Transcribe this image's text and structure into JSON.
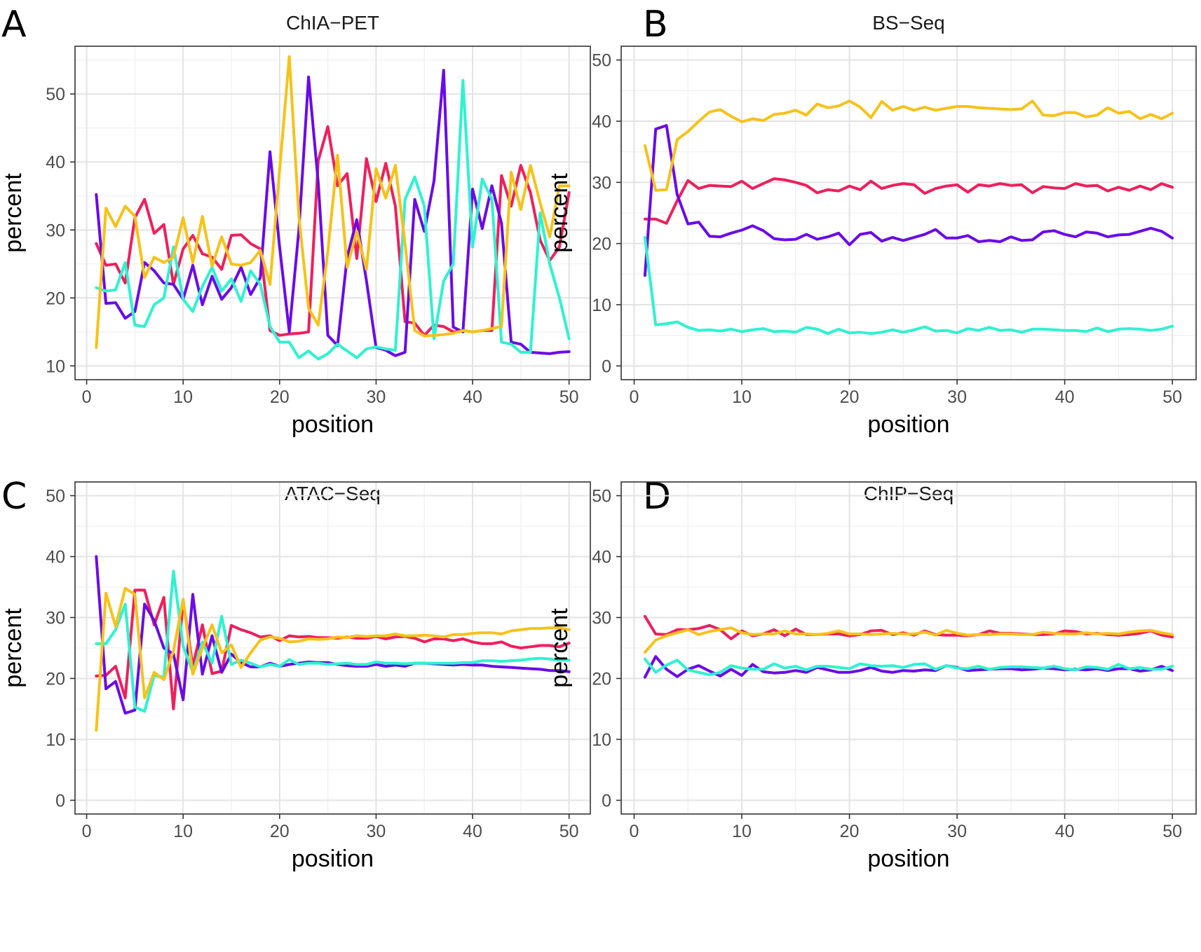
{
  "colors": {
    "red": "#EF1F5C",
    "purple": "#6A0BE8",
    "cyan": "#2EF2D0",
    "gold": "#F6C21A"
  },
  "chart_data": [
    {
      "panel": "A",
      "type": "line",
      "title": "ChIA−PET",
      "xlabel": "position",
      "ylabel": "percent",
      "xlim": [
        1,
        50
      ],
      "ylim": [
        10,
        55
      ],
      "xticks": [
        0,
        10,
        20,
        30,
        40,
        50
      ],
      "yticks": [
        10,
        20,
        30,
        40,
        50
      ],
      "grid": true,
      "x": [
        1,
        2,
        3,
        4,
        5,
        6,
        7,
        8,
        9,
        10,
        11,
        12,
        13,
        14,
        15,
        16,
        17,
        18,
        19,
        20,
        21,
        22,
        23,
        24,
        25,
        26,
        27,
        28,
        29,
        30,
        31,
        32,
        33,
        34,
        35,
        36,
        37,
        38,
        39,
        40,
        41,
        42,
        43,
        44,
        45,
        46,
        47,
        48,
        49,
        50
      ],
      "series": [
        {
          "color": "red",
          "values": [
            28,
            24.8,
            25,
            22.2,
            31.8,
            34.5,
            29.5,
            30.8,
            22,
            27.2,
            29.2,
            26.5,
            26,
            24.2,
            29.2,
            29.3,
            28,
            27.2,
            15.2,
            14.5,
            14.7,
            14.8,
            15,
            40.2,
            45.2,
            36.5,
            38.3,
            25.8,
            40.5,
            34.2,
            39.8,
            33.5,
            16.5,
            16.3,
            14.5,
            16,
            15.8,
            15,
            15.2,
            15,
            15.2,
            15.2,
            38,
            33.5,
            39.5,
            35.5,
            28.5,
            25.5,
            27.5,
            35.5
          ]
        },
        {
          "color": "purple",
          "values": [
            35.2,
            19.2,
            19.3,
            17,
            18,
            25.2,
            24,
            22.2,
            22,
            19.8,
            24.8,
            19,
            23.2,
            19.8,
            21.5,
            24.5,
            20.5,
            23,
            41.5,
            27.5,
            15,
            30,
            52.5,
            37,
            14.5,
            13,
            26,
            31.5,
            22.5,
            12.7,
            12.3,
            11.5,
            12,
            34.5,
            29.8,
            37.2,
            53.5,
            15.7,
            15,
            36,
            30.2,
            36.5,
            31,
            13.5,
            13.2,
            12,
            11.9,
            11.8,
            12,
            12.1
          ]
        },
        {
          "color": "cyan",
          "values": [
            21.5,
            21,
            21.2,
            25.2,
            16,
            15.8,
            19,
            20,
            27.5,
            19.8,
            18,
            21.7,
            24.5,
            21,
            22.8,
            19.5,
            24,
            22,
            15.8,
            13.5,
            13.5,
            11.2,
            12.2,
            11,
            11.8,
            13.2,
            12.2,
            11.2,
            12.5,
            12.8,
            12.5,
            12.3,
            34.5,
            37.8,
            33.5,
            14,
            22.5,
            25,
            52,
            27.5,
            37.5,
            34.5,
            13.5,
            13.2,
            12,
            12,
            32.5,
            25,
            20,
            14
          ]
        },
        {
          "color": "gold",
          "values": [
            12.7,
            33.2,
            30.5,
            33.5,
            32,
            23,
            26,
            25.2,
            26,
            31.8,
            25.2,
            32,
            24.7,
            29,
            25,
            24.8,
            25.2,
            27,
            22,
            38.8,
            55.5,
            32,
            18.5,
            16,
            26.8,
            41,
            24.5,
            29.8,
            24.2,
            39,
            34.7,
            39.5,
            28,
            15.2,
            14.4,
            14.5,
            14.6,
            14.8,
            15.2,
            15,
            15.2,
            15.5,
            15.8,
            38.5,
            33,
            39.5,
            34,
            29,
            36.5,
            36.5
          ]
        }
      ]
    },
    {
      "panel": "B",
      "type": "line",
      "title": "BS−Seq",
      "xlabel": "position",
      "ylabel": "percent",
      "xlim": [
        1,
        50
      ],
      "ylim": [
        0,
        50
      ],
      "xticks": [
        0,
        10,
        20,
        30,
        40,
        50
      ],
      "yticks": [
        0,
        10,
        20,
        30,
        40,
        50
      ],
      "grid": true,
      "x": [
        1,
        2,
        3,
        4,
        5,
        6,
        7,
        8,
        9,
        10,
        11,
        12,
        13,
        14,
        15,
        16,
        17,
        18,
        19,
        20,
        21,
        22,
        23,
        24,
        25,
        26,
        27,
        28,
        29,
        30,
        31,
        32,
        33,
        34,
        35,
        36,
        37,
        38,
        39,
        40,
        41,
        42,
        43,
        44,
        45,
        46,
        47,
        48,
        49,
        50
      ],
      "series": [
        {
          "color": "red",
          "values": [
            24,
            24,
            23.3,
            27,
            30.3,
            29,
            29.5,
            29.4,
            29.3,
            30.2,
            29,
            29.8,
            30.6,
            30.4,
            30,
            29.5,
            28.3,
            28.8,
            28.6,
            29.4,
            28.8,
            30.2,
            29,
            29.5,
            29.8,
            29.6,
            28.2,
            29,
            29.4,
            29.6,
            28.4,
            29.6,
            29.4,
            29.8,
            29.5,
            29.6,
            28.3,
            29.3,
            29.1,
            29,
            29.8,
            29.4,
            29.5,
            28.6,
            29.2,
            28.7,
            29.4,
            28.8,
            29.8,
            29.2
          ]
        },
        {
          "color": "purple",
          "values": [
            14.8,
            38.7,
            39.3,
            28,
            23.2,
            23.5,
            21.2,
            21.1,
            21.7,
            22.2,
            22.9,
            22.1,
            20.8,
            20.6,
            20.7,
            21.5,
            20.7,
            21.1,
            21.7,
            19.8,
            21.5,
            21.8,
            20.4,
            21,
            20.5,
            21,
            21.5,
            22.3,
            20.9,
            20.9,
            21.3,
            20.3,
            20.5,
            20.3,
            21.1,
            20.5,
            20.6,
            21.9,
            22.1,
            21.5,
            21.1,
            21.9,
            21.7,
            21.1,
            21.4,
            21.5,
            22,
            22.5,
            22,
            20.9
          ]
        },
        {
          "color": "cyan",
          "values": [
            21,
            6.7,
            6.9,
            7.2,
            6.3,
            5.8,
            5.9,
            5.7,
            6,
            5.6,
            5.9,
            6.1,
            5.6,
            5.7,
            5.5,
            6.3,
            6,
            5.3,
            6,
            5.4,
            5.5,
            5.3,
            5.5,
            5.9,
            5.5,
            5.9,
            6.4,
            5.7,
            5.8,
            5.4,
            6.1,
            5.8,
            6.3,
            5.8,
            5.9,
            5.5,
            6,
            6,
            5.9,
            5.8,
            5.8,
            5.6,
            6.2,
            5.6,
            6,
            6.1,
            6,
            5.8,
            6,
            6.5
          ]
        },
        {
          "color": "gold",
          "values": [
            36,
            28.7,
            28.8,
            37,
            38.3,
            40,
            41.5,
            41.9,
            40.8,
            39.9,
            40.4,
            40.1,
            41.1,
            41.3,
            41.8,
            41,
            42.8,
            42.2,
            42.5,
            43.3,
            42.3,
            40.6,
            43.2,
            41.8,
            42.4,
            41.8,
            42.3,
            41.8,
            42.1,
            42.4,
            42.4,
            42.2,
            42.1,
            42,
            41.9,
            42,
            43.3,
            41,
            40.9,
            41.4,
            41.4,
            40.7,
            41,
            42.2,
            41.3,
            41.6,
            40.4,
            41.1,
            40.4,
            41.3
          ]
        }
      ]
    },
    {
      "panel": "C",
      "type": "line",
      "title": "ATAC−Seq",
      "xlabel": "position",
      "ylabel": "percent",
      "xlim": [
        1,
        50
      ],
      "ylim": [
        0,
        50
      ],
      "xticks": [
        0,
        10,
        20,
        30,
        40,
        50
      ],
      "yticks": [
        0,
        10,
        20,
        30,
        40,
        50
      ],
      "grid": true,
      "x": [
        1,
        2,
        3,
        4,
        5,
        6,
        7,
        8,
        9,
        10,
        11,
        12,
        13,
        14,
        15,
        16,
        17,
        18,
        19,
        20,
        21,
        22,
        23,
        24,
        25,
        26,
        27,
        28,
        29,
        30,
        31,
        32,
        33,
        34,
        35,
        36,
        37,
        38,
        39,
        40,
        41,
        42,
        43,
        44,
        45,
        46,
        47,
        48,
        49,
        50
      ],
      "series": [
        {
          "color": "red",
          "values": [
            20.4,
            20.5,
            22,
            16.8,
            34.5,
            34.5,
            28.8,
            33.3,
            15,
            32.8,
            22,
            28.8,
            20.8,
            21.2,
            28.7,
            28,
            27.5,
            26.8,
            27,
            26.2,
            27,
            26.8,
            26.9,
            26.7,
            26.7,
            26.6,
            26.8,
            26.6,
            26.6,
            26.9,
            26.5,
            26.8,
            26.9,
            26.6,
            26,
            26.5,
            26.5,
            26.2,
            26.5,
            26,
            25.7,
            25.7,
            26,
            25.3,
            25,
            25.2,
            25.4,
            25.4,
            25.2,
            25.8
          ]
        },
        {
          "color": "purple",
          "values": [
            40,
            18.3,
            19.5,
            14.3,
            14.8,
            32.2,
            29.5,
            25,
            24,
            16.5,
            33.8,
            20.7,
            27,
            21,
            24,
            22.6,
            21.9,
            21.9,
            22.5,
            22,
            22.3,
            22.5,
            22.7,
            22.6,
            22.6,
            22.3,
            22.1,
            22,
            22,
            22.3,
            22,
            22.2,
            22,
            22.5,
            22.5,
            22.4,
            22.3,
            22.2,
            22.3,
            22.2,
            22.2,
            22,
            21.9,
            21.8,
            21.7,
            21.6,
            21.5,
            21.3,
            21.3,
            21.1
          ]
        },
        {
          "color": "cyan",
          "values": [
            25.7,
            25.7,
            28,
            32.2,
            15.3,
            14.6,
            20.5,
            20.2,
            37.6,
            25.3,
            21,
            26,
            22.5,
            30.2,
            22.3,
            23,
            22.5,
            21.9,
            22.3,
            22,
            23.1,
            22.3,
            22.5,
            22.5,
            22.3,
            22.4,
            22.5,
            22.3,
            22.3,
            22.7,
            22.5,
            22.5,
            22.4,
            22.5,
            22.5,
            22.5,
            22.5,
            22.5,
            22.6,
            22.6,
            22.9,
            22.9,
            22.8,
            22.9,
            23,
            23.2,
            23.3,
            23.2,
            23,
            23
          ]
        },
        {
          "color": "gold",
          "values": [
            11.5,
            34,
            28.5,
            34.8,
            33.8,
            16.8,
            21,
            19.8,
            24.5,
            33,
            20.7,
            25,
            28.8,
            24.2,
            25.5,
            21.8,
            24.2,
            26.3,
            26.8,
            26.6,
            26,
            26.1,
            26.5,
            26.4,
            26.5,
            26.8,
            26.7,
            27,
            26.9,
            27,
            27,
            27.3,
            27,
            27,
            27.1,
            27,
            26.8,
            27.2,
            27.2,
            27.4,
            27.5,
            27.5,
            27.3,
            27.8,
            28,
            28.2,
            28.2,
            28.3,
            28.3,
            28
          ]
        }
      ]
    },
    {
      "panel": "D",
      "type": "line",
      "title": "ChIP−Seq",
      "xlabel": "position",
      "ylabel": "percent",
      "xlim": [
        1,
        50
      ],
      "ylim": [
        0,
        50
      ],
      "xticks": [
        0,
        10,
        20,
        30,
        40,
        50
      ],
      "yticks": [
        0,
        10,
        20,
        30,
        40,
        50
      ],
      "grid": true,
      "x": [
        1,
        2,
        3,
        4,
        5,
        6,
        7,
        8,
        9,
        10,
        11,
        12,
        13,
        14,
        15,
        16,
        17,
        18,
        19,
        20,
        21,
        22,
        23,
        24,
        25,
        26,
        27,
        28,
        29,
        30,
        31,
        32,
        33,
        34,
        35,
        36,
        37,
        38,
        39,
        40,
        41,
        42,
        43,
        44,
        45,
        46,
        47,
        48,
        49,
        50
      ],
      "series": [
        {
          "color": "red",
          "values": [
            30.2,
            27.3,
            27.2,
            28,
            28,
            28.2,
            28.7,
            28,
            26.5,
            27.8,
            27,
            27.3,
            28,
            27,
            28.1,
            27.2,
            27.2,
            27.3,
            27.3,
            27,
            27.2,
            27.8,
            27.9,
            27.2,
            27.5,
            27.1,
            27.8,
            27.2,
            27.1,
            27.1,
            27,
            27.2,
            27.8,
            27.4,
            27.4,
            27.3,
            27.2,
            27.2,
            27.3,
            27.8,
            27.7,
            27.3,
            27.4,
            27.2,
            27.1,
            27.2,
            27.4,
            27.8,
            27.1,
            26.8
          ]
        },
        {
          "color": "purple",
          "values": [
            20.2,
            23.6,
            21.5,
            20.3,
            21.5,
            22.1,
            21.2,
            20.4,
            21.5,
            20.5,
            22.3,
            21.1,
            20.9,
            21,
            21.3,
            21,
            21.8,
            21.4,
            21,
            21,
            21.3,
            21.8,
            21.2,
            21,
            21.3,
            21.2,
            21.4,
            21.3,
            22.1,
            21.8,
            21.3,
            21.4,
            21.5,
            21.6,
            21.6,
            21.4,
            21.5,
            21.7,
            21.6,
            21.4,
            21.5,
            21.4,
            21.6,
            21.3,
            21.6,
            21.6,
            21.2,
            21.4,
            22,
            21.3
          ]
        },
        {
          "color": "cyan",
          "values": [
            23.2,
            21,
            22.2,
            23,
            21.4,
            21,
            20.6,
            21,
            22.1,
            21.7,
            21.5,
            21.5,
            22.4,
            21.7,
            22,
            21.4,
            22,
            22,
            21.8,
            21.6,
            22.4,
            22.1,
            22,
            22.1,
            21.8,
            22.3,
            22.4,
            21.5,
            22.1,
            21.7,
            21.6,
            22,
            21.5,
            21.8,
            21.9,
            21.9,
            21.8,
            21.7,
            22,
            21.6,
            21.4,
            21.9,
            21.8,
            21.5,
            22.3,
            21.6,
            21.8,
            21.5,
            21.5,
            22
          ]
        },
        {
          "color": "gold",
          "values": [
            24.3,
            26.3,
            27,
            27.5,
            28,
            27.2,
            27.7,
            28,
            28.3,
            27.5,
            27.2,
            27.3,
            27.3,
            27.8,
            27.3,
            27.3,
            27.2,
            27.4,
            27.8,
            27.3,
            27.3,
            27.2,
            27.3,
            27.4,
            27.3,
            27.3,
            27.6,
            27.1,
            27.9,
            27.4,
            27.1,
            27.2,
            27.2,
            27.3,
            27.3,
            27.2,
            27.2,
            27.6,
            27.4,
            27.3,
            27.3,
            27.5,
            27.3,
            27.4,
            27.3,
            27.6,
            27.8,
            27.9,
            27.5,
            27.2
          ]
        }
      ]
    }
  ]
}
